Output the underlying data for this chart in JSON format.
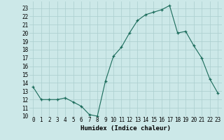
{
  "x": [
    0,
    1,
    2,
    3,
    4,
    5,
    6,
    7,
    8,
    9,
    10,
    11,
    12,
    13,
    14,
    15,
    16,
    17,
    18,
    19,
    20,
    21,
    22,
    23
  ],
  "y": [
    13.5,
    12.0,
    12.0,
    12.0,
    12.2,
    11.7,
    11.2,
    10.2,
    10.0,
    14.2,
    17.2,
    18.3,
    20.0,
    21.5,
    22.2,
    22.5,
    22.8,
    23.3,
    20.0,
    20.2,
    18.5,
    17.0,
    14.5,
    12.8
  ],
  "title": "",
  "xlabel": "Humidex (Indice chaleur)",
  "ylabel": "",
  "xlim": [
    -0.5,
    23.5
  ],
  "ylim": [
    10,
    23.8
  ],
  "yticks": [
    10,
    11,
    12,
    13,
    14,
    15,
    16,
    17,
    18,
    19,
    20,
    21,
    22,
    23
  ],
  "xticks": [
    0,
    1,
    2,
    3,
    4,
    5,
    6,
    7,
    8,
    9,
    10,
    11,
    12,
    13,
    14,
    15,
    16,
    17,
    18,
    19,
    20,
    21,
    22,
    23
  ],
  "line_color": "#1a6b5a",
  "marker": "+",
  "bg_color": "#cce8e8",
  "grid_color": "#aacece",
  "label_fontsize": 6.5,
  "tick_fontsize": 5.5
}
